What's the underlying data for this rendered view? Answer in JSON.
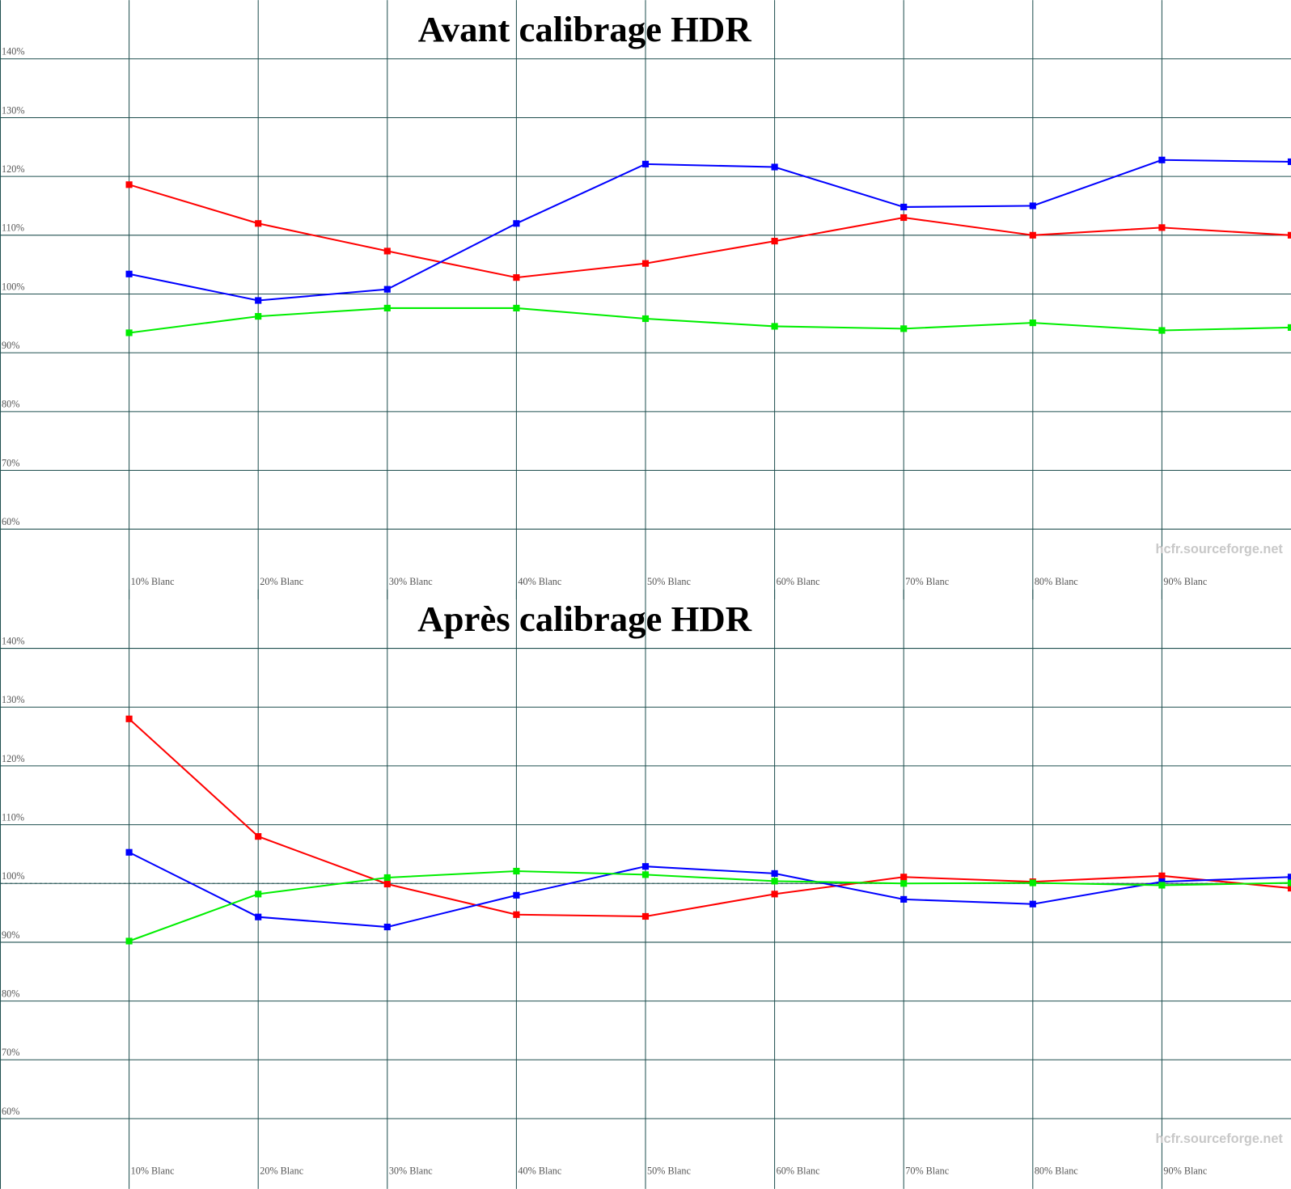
{
  "chart_data": [
    {
      "type": "line",
      "title": "Avant calibrage HDR",
      "watermark": "hcfr.sourceforge.net",
      "categories": [
        "10% Blanc",
        "20% Blanc",
        "30% Blanc",
        "40% Blanc",
        "50% Blanc",
        "60% Blanc",
        "70% Blanc",
        "80% Blanc",
        "90% Blanc",
        null
      ],
      "series": [
        {
          "color": "#ff0000",
          "values": [
            118.6,
            112.0,
            107.3,
            102.8,
            105.2,
            109.0,
            113.0,
            110.0,
            111.3,
            110.0
          ]
        },
        {
          "color": "#0000ff",
          "values": [
            103.4,
            98.9,
            100.8,
            112.0,
            122.1,
            121.6,
            114.8,
            115.0,
            122.8,
            122.5
          ]
        },
        {
          "color": "#00ee00",
          "values": [
            93.4,
            96.2,
            97.6,
            97.6,
            95.8,
            94.5,
            94.1,
            95.1,
            93.8,
            94.3
          ]
        }
      ],
      "ylim": [
        50,
        150
      ],
      "yticks": [
        {
          "value": 60,
          "label": "60%"
        },
        {
          "value": 70,
          "label": "70%"
        },
        {
          "value": 80,
          "label": "80%"
        },
        {
          "value": 90,
          "label": "90%"
        },
        {
          "value": 100,
          "label": "100%"
        },
        {
          "value": 110,
          "label": "110%"
        },
        {
          "value": 120,
          "label": "120%"
        },
        {
          "value": 130,
          "label": "130%"
        },
        {
          "value": 140,
          "label": "140%"
        }
      ],
      "reference": 100,
      "grid": true
    },
    {
      "type": "line",
      "title": "Après calibrage HDR",
      "watermark": "hcfr.sourceforge.net",
      "categories": [
        "10% Blanc",
        "20% Blanc",
        "30% Blanc",
        "40% Blanc",
        "50% Blanc",
        "60% Blanc",
        "70% Blanc",
        "80% Blanc",
        "90% Blanc",
        null
      ],
      "series": [
        {
          "color": "#ff0000",
          "values": [
            128.0,
            108.0,
            99.9,
            94.7,
            94.4,
            98.2,
            101.1,
            100.3,
            101.3,
            99.2
          ]
        },
        {
          "color": "#0000ff",
          "values": [
            105.3,
            94.3,
            92.6,
            98.0,
            102.9,
            101.7,
            97.3,
            96.5,
            100.3,
            101.1
          ]
        },
        {
          "color": "#00ee00",
          "values": [
            90.2,
            98.2,
            101.0,
            102.1,
            101.5,
            100.4,
            100.0,
            100.1,
            99.7,
            100.1
          ]
        }
      ],
      "ylim": [
        50,
        150
      ],
      "yticks": [
        {
          "value": 60,
          "label": "60%"
        },
        {
          "value": 70,
          "label": "70%"
        },
        {
          "value": 80,
          "label": "80%"
        },
        {
          "value": 90,
          "label": "90%"
        },
        {
          "value": 100,
          "label": "100%"
        },
        {
          "value": 110,
          "label": "110%"
        },
        {
          "value": 120,
          "label": "120%"
        },
        {
          "value": 130,
          "label": "130%"
        },
        {
          "value": 140,
          "label": "140%"
        }
      ],
      "reference": 100,
      "grid": true
    }
  ]
}
